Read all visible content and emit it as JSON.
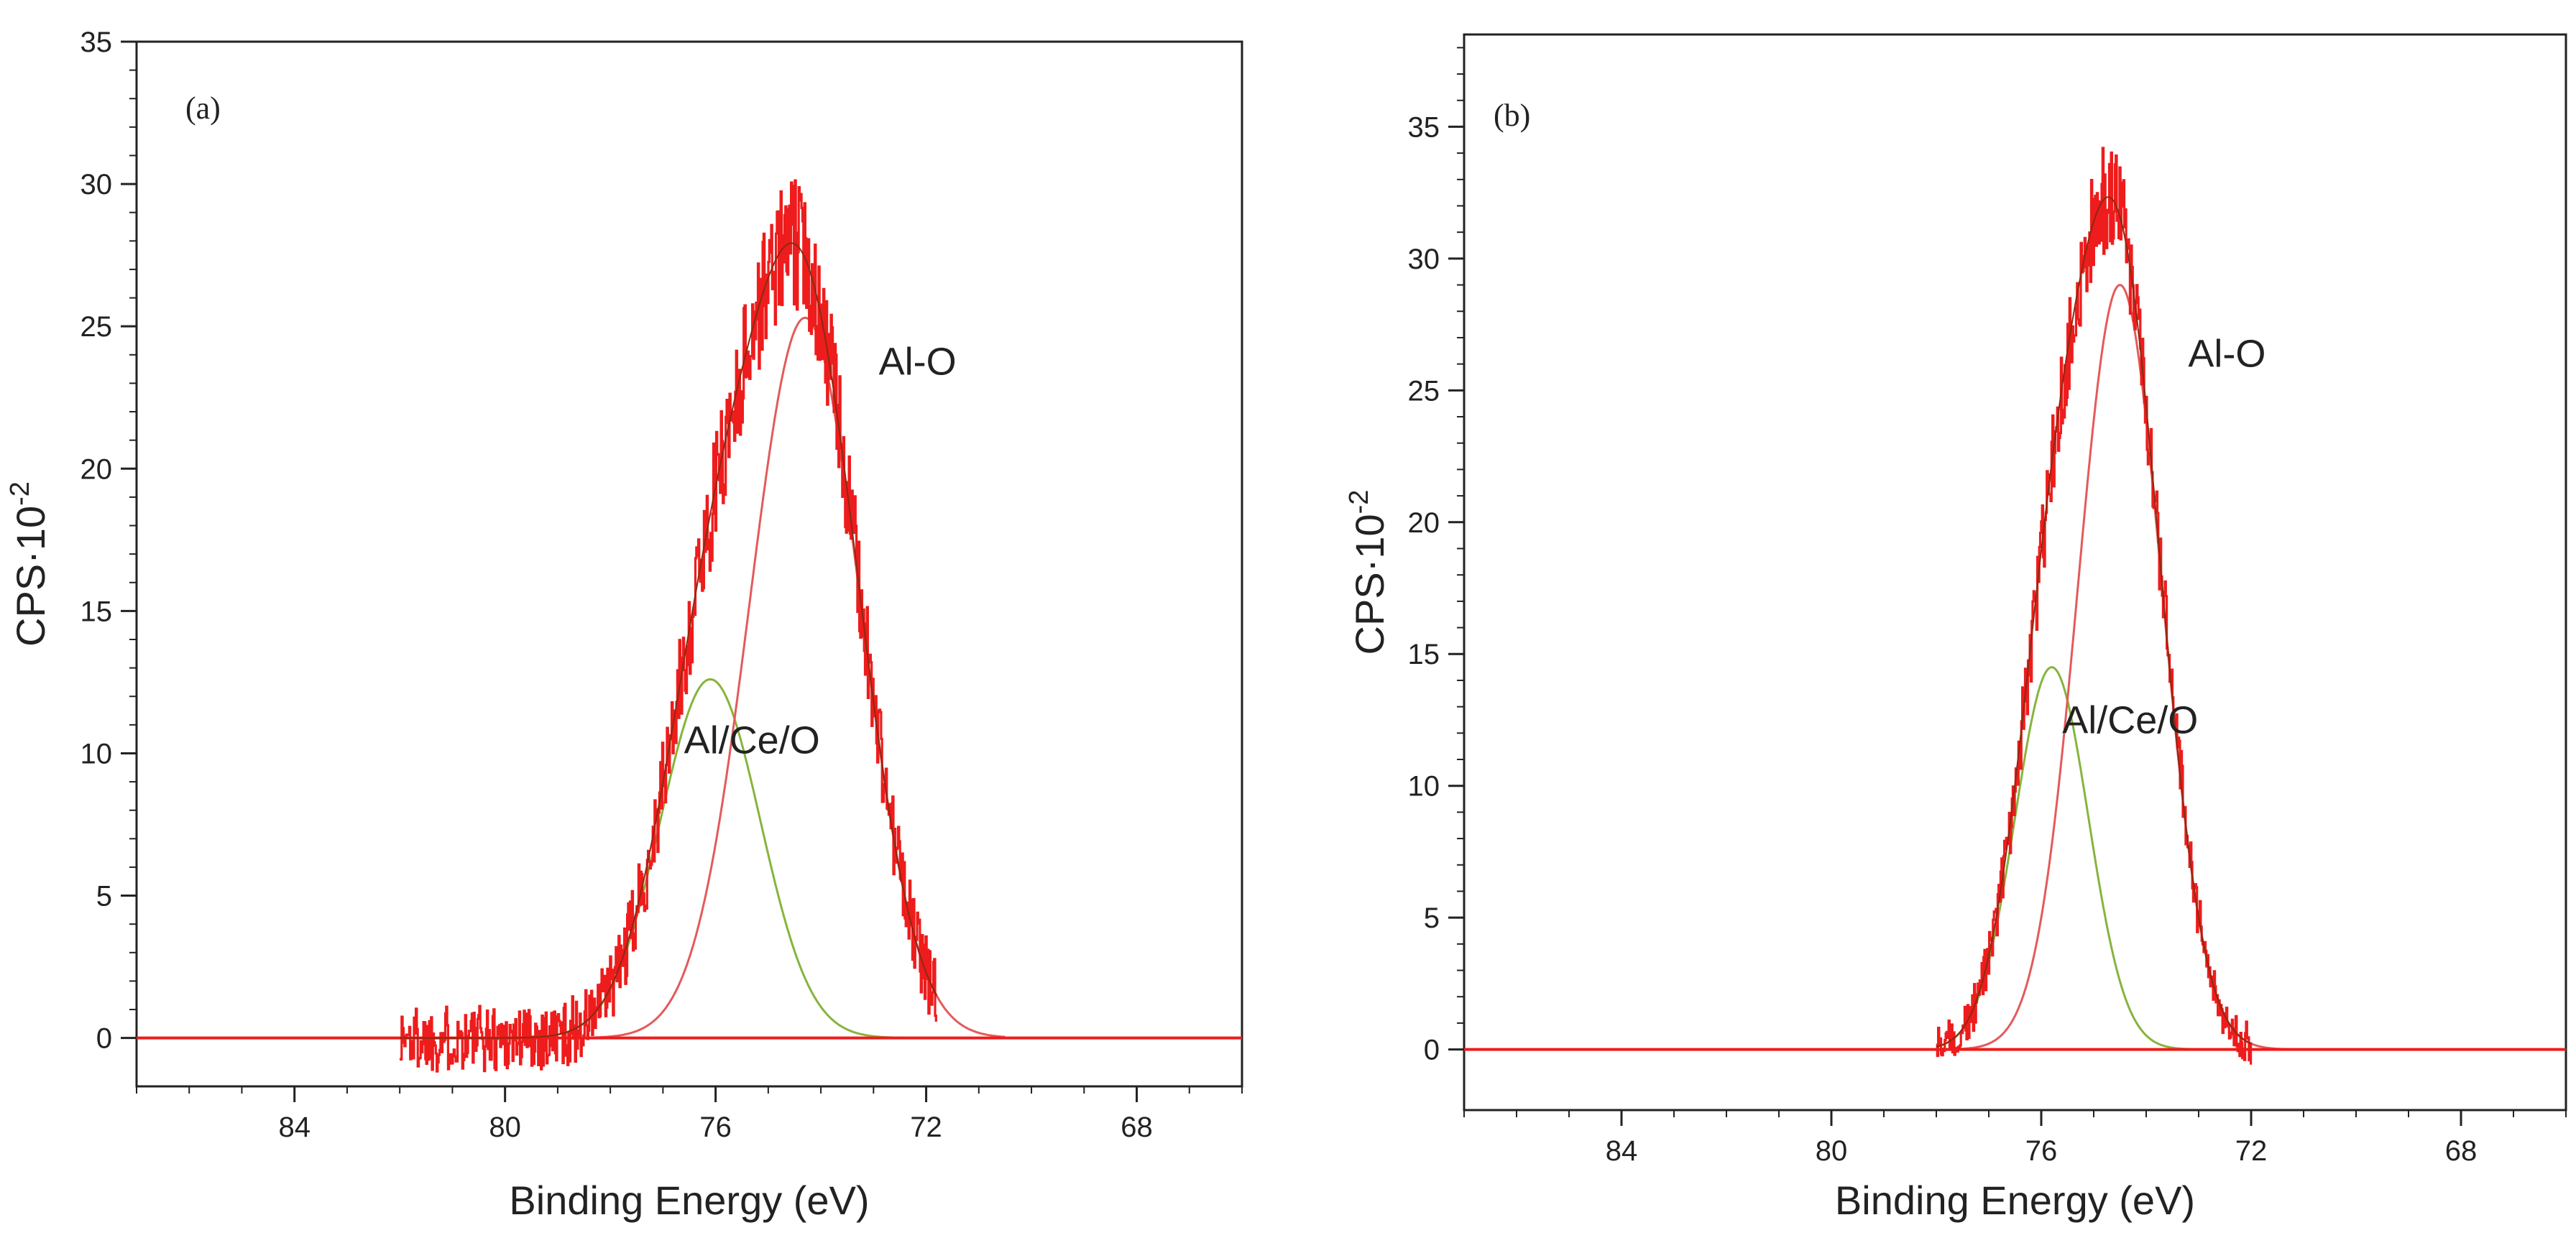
{
  "colors": {
    "envelope": "#ee1c1c",
    "al_o_component": "#e45a5a",
    "al_ce_o_component": "#86b43c",
    "axis": "#222222"
  },
  "chart_data": [
    {
      "type": "line",
      "panel_label": "(a)",
      "xlabel": "Binding Energy (eV)",
      "ylabel": "CPS·10",
      "ylabel_superscript": "-2",
      "xlim": [
        87,
        66
      ],
      "ylim": [
        -1.7,
        35
      ],
      "x_ticks": [
        84,
        80,
        76,
        72,
        68
      ],
      "x_tick_labels": [
        "84",
        "80",
        "76",
        "72",
        "68"
      ],
      "y_ticks": [
        0,
        5,
        10,
        15,
        20,
        25,
        30,
        35
      ],
      "y_tick_labels": [
        "0",
        "5",
        "10",
        "15",
        "20",
        "25",
        "30",
        "35"
      ],
      "grid": false,
      "data_range": [
        82.0,
        71.8
      ],
      "noise_amplitude": 1.2,
      "series": [
        {
          "name": "Al-O",
          "label": "Al-O",
          "center": 74.3,
          "height": 25.3,
          "sigma": 1.05,
          "label_at": [
            72.9,
            23.3
          ]
        },
        {
          "name": "Al/Ce/O",
          "label": "Al/Ce/O",
          "center": 76.1,
          "height": 12.6,
          "sigma": 0.95,
          "label_at": [
            76.6,
            10.0
          ]
        }
      ]
    },
    {
      "type": "line",
      "panel_label": "(b)",
      "xlabel": "Binding Energy (eV)",
      "ylabel": "CPS·10",
      "ylabel_superscript": "-2",
      "xlim": [
        87,
        66
      ],
      "ylim": [
        -2.3,
        38.5
      ],
      "x_ticks": [
        84,
        80,
        76,
        72,
        68
      ],
      "x_tick_labels": [
        "84",
        "80",
        "76",
        "72",
        "68"
      ],
      "y_ticks": [
        0,
        5,
        10,
        15,
        20,
        25,
        30,
        35
      ],
      "y_tick_labels": [
        "0",
        "5",
        "10",
        "15",
        "20",
        "25",
        "30",
        "35"
      ],
      "grid": false,
      "data_range": [
        78.0,
        72.0
      ],
      "noise_amplitude": 0.8,
      "series": [
        {
          "name": "Al-O",
          "label": "Al-O",
          "center": 74.5,
          "height": 29.0,
          "sigma": 0.8,
          "label_at": [
            73.2,
            25.9
          ]
        },
        {
          "name": "Al/Ce/O",
          "label": "Al/Ce/O",
          "center": 75.8,
          "height": 14.5,
          "sigma": 0.7,
          "label_at": [
            75.6,
            12.0
          ]
        }
      ]
    }
  ]
}
